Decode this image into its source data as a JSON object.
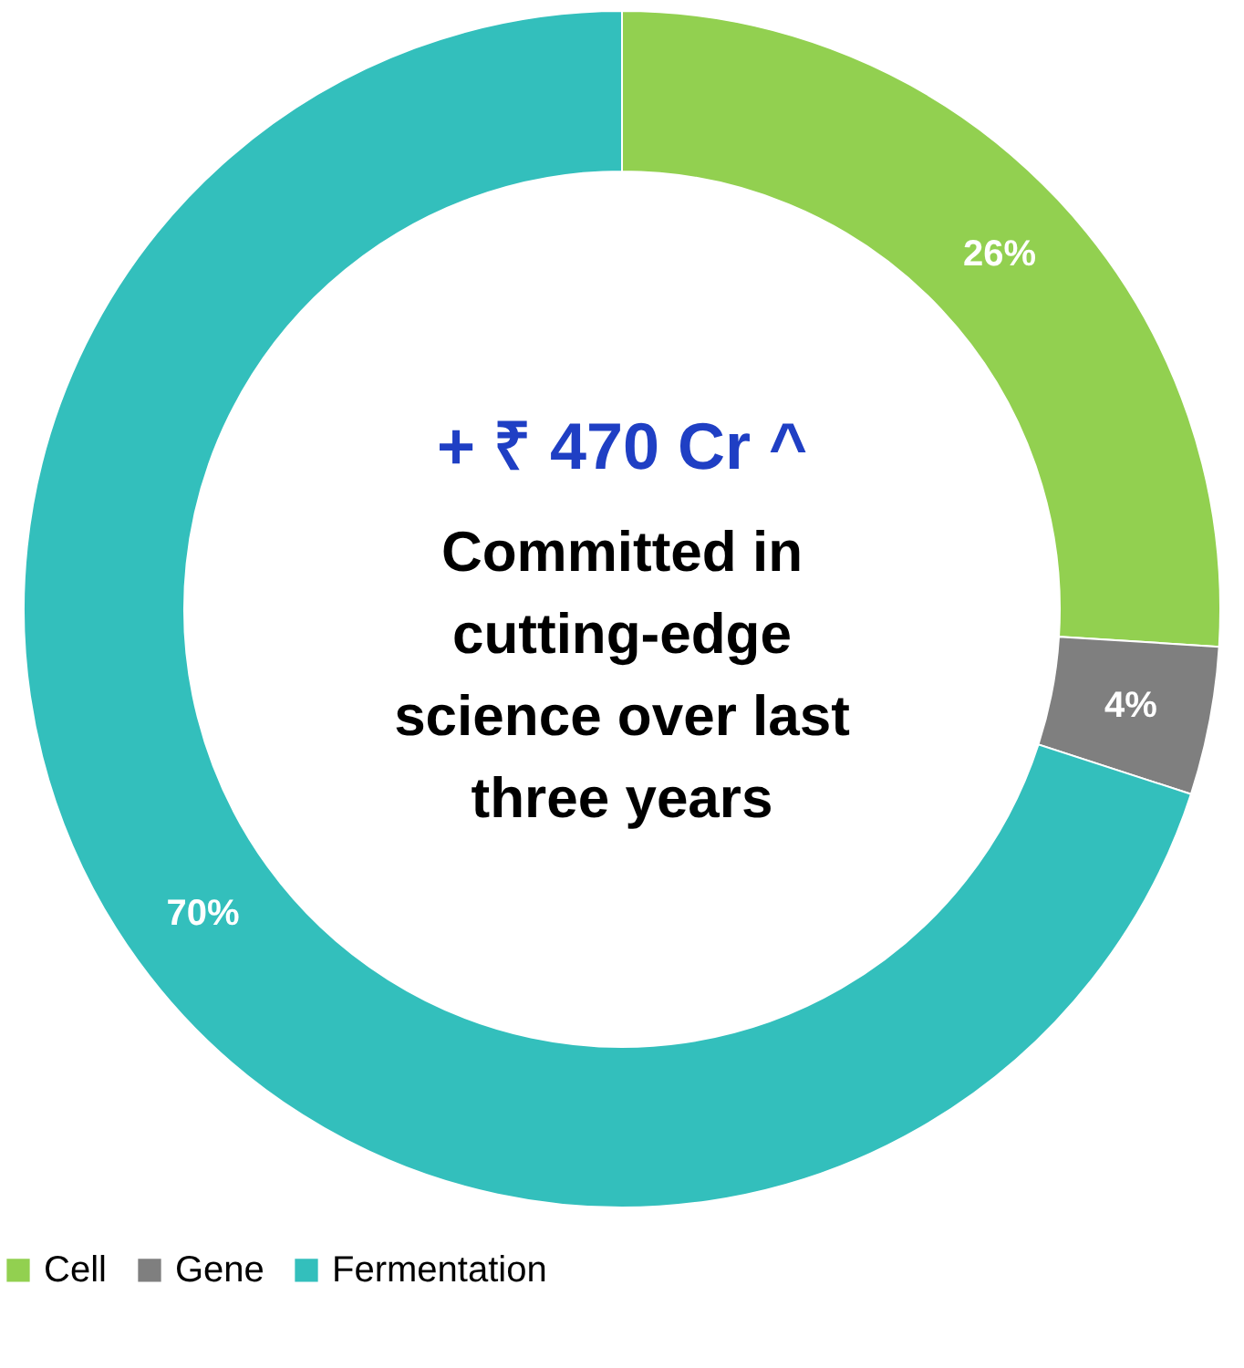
{
  "chart_data": {
    "type": "donut",
    "categories": [
      "Cell",
      "Gene",
      "Fermentation"
    ],
    "values": [
      26,
      4,
      70
    ],
    "colors": [
      "#92d050",
      "#7f7f7f",
      "#33bfbc"
    ],
    "value_labels": [
      "26%",
      "4%",
      "70%"
    ],
    "annotations": [
      "+ ₹ 470 Cr ^",
      "Committed in cutting-edge science over last three years"
    ],
    "legend": "bottom"
  }
}
